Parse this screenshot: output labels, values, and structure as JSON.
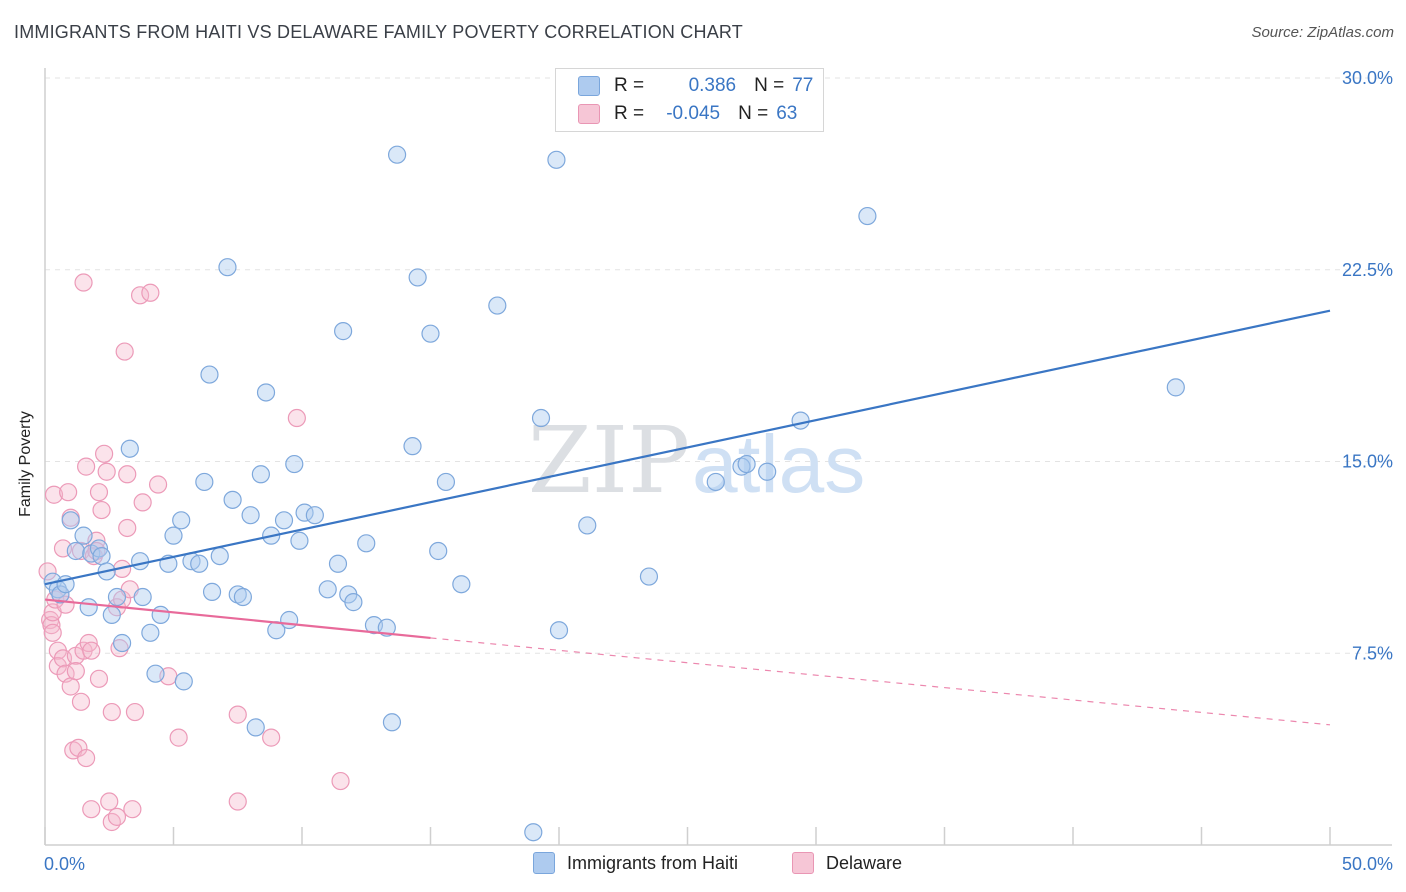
{
  "title": "IMMIGRANTS FROM HAITI VS DELAWARE FAMILY POVERTY CORRELATION CHART",
  "source": "Source: ZipAtlas.com",
  "watermark": "ZIPatlas",
  "legend": {
    "r_label": "R =",
    "n_label": "N =",
    "blue": {
      "r": "0.386",
      "n": "77"
    },
    "pink": {
      "r": "-0.045",
      "n": "63"
    }
  },
  "colors": {
    "blue": "#3a76c4",
    "blue_fill": "#aecbef",
    "pink": "#e86a9a",
    "pink_fill": "#f6b8cc"
  },
  "chart_data": {
    "type": "scatter",
    "xlabel": "",
    "ylabel": "Family Poverty",
    "xlim": [
      0,
      50
    ],
    "ylim": [
      0,
      30
    ],
    "x_tick_labels": [
      "0.0%",
      "50.0%"
    ],
    "y_tick_values": [
      7.5,
      15.0,
      22.5,
      30.0
    ],
    "y_tick_labels": [
      "7.5%",
      "15.0%",
      "22.5%",
      "30.0%"
    ],
    "series": [
      {
        "name": "Immigrants from Haiti",
        "color": "blue",
        "trend": {
          "x0": 0,
          "y0": 10.2,
          "x1": 50,
          "y1": 20.9,
          "dashed_to": null
        },
        "points": [
          [
            0.3,
            10.3
          ],
          [
            0.5,
            10.0
          ],
          [
            0.6,
            9.8
          ],
          [
            0.8,
            10.2
          ],
          [
            1.0,
            12.7
          ],
          [
            1.2,
            11.5
          ],
          [
            1.5,
            12.1
          ],
          [
            1.7,
            9.3
          ],
          [
            1.8,
            11.4
          ],
          [
            2.1,
            11.6
          ],
          [
            2.2,
            11.3
          ],
          [
            2.4,
            10.7
          ],
          [
            2.6,
            9.0
          ],
          [
            2.8,
            9.7
          ],
          [
            3.0,
            7.9
          ],
          [
            3.3,
            15.5
          ],
          [
            3.7,
            11.1
          ],
          [
            3.8,
            9.7
          ],
          [
            4.1,
            8.3
          ],
          [
            4.3,
            6.7
          ],
          [
            4.5,
            9.0
          ],
          [
            4.8,
            11.0
          ],
          [
            5.0,
            12.1
          ],
          [
            5.3,
            12.7
          ],
          [
            5.4,
            6.4
          ],
          [
            5.7,
            11.1
          ],
          [
            6.0,
            11.0
          ],
          [
            6.2,
            14.2
          ],
          [
            6.4,
            18.4
          ],
          [
            6.5,
            9.9
          ],
          [
            6.8,
            11.3
          ],
          [
            7.1,
            22.6
          ],
          [
            7.3,
            13.5
          ],
          [
            7.5,
            9.8
          ],
          [
            7.7,
            9.7
          ],
          [
            8.0,
            12.9
          ],
          [
            8.2,
            4.6
          ],
          [
            8.4,
            14.5
          ],
          [
            8.6,
            17.7
          ],
          [
            8.8,
            12.1
          ],
          [
            9.0,
            8.4
          ],
          [
            9.3,
            12.7
          ],
          [
            9.5,
            8.8
          ],
          [
            9.7,
            14.9
          ],
          [
            9.9,
            11.9
          ],
          [
            10.1,
            13.0
          ],
          [
            10.5,
            12.9
          ],
          [
            11.0,
            10.0
          ],
          [
            11.4,
            11.0
          ],
          [
            11.6,
            20.1
          ],
          [
            11.8,
            9.8
          ],
          [
            12.0,
            9.5
          ],
          [
            12.5,
            11.8
          ],
          [
            12.8,
            8.6
          ],
          [
            13.3,
            8.5
          ],
          [
            13.5,
            4.8
          ],
          [
            13.7,
            27.0
          ],
          [
            14.3,
            15.6
          ],
          [
            14.5,
            22.2
          ],
          [
            15.0,
            20.0
          ],
          [
            15.3,
            11.5
          ],
          [
            15.6,
            14.2
          ],
          [
            16.2,
            10.2
          ],
          [
            17.6,
            21.1
          ],
          [
            19.0,
            0.5
          ],
          [
            19.3,
            16.7
          ],
          [
            19.9,
            26.8
          ],
          [
            20.0,
            8.4
          ],
          [
            21.1,
            12.5
          ],
          [
            23.5,
            10.5
          ],
          [
            26.1,
            14.2
          ],
          [
            27.1,
            14.8
          ],
          [
            27.3,
            14.9
          ],
          [
            28.1,
            14.6
          ],
          [
            29.4,
            16.6
          ],
          [
            32.0,
            24.6
          ],
          [
            44.0,
            17.9
          ]
        ]
      },
      {
        "name": "Delaware",
        "color": "pink",
        "trend": {
          "x0": 0,
          "y0": 9.6,
          "x1": 15,
          "y1": 8.1,
          "dashed_to": {
            "x": 50,
            "y": 4.7
          }
        },
        "points": [
          [
            0.1,
            10.7
          ],
          [
            0.2,
            8.8
          ],
          [
            0.25,
            8.6
          ],
          [
            0.3,
            8.3
          ],
          [
            0.3,
            9.1
          ],
          [
            0.35,
            13.7
          ],
          [
            0.4,
            9.6
          ],
          [
            0.5,
            7.6
          ],
          [
            0.5,
            7.0
          ],
          [
            0.6,
            9.8
          ],
          [
            0.7,
            11.6
          ],
          [
            0.7,
            7.3
          ],
          [
            0.8,
            9.4
          ],
          [
            0.8,
            6.7
          ],
          [
            0.9,
            13.8
          ],
          [
            1.0,
            6.2
          ],
          [
            1.0,
            12.8
          ],
          [
            1.1,
            3.7
          ],
          [
            1.2,
            7.4
          ],
          [
            1.2,
            6.8
          ],
          [
            1.3,
            3.8
          ],
          [
            1.4,
            11.5
          ],
          [
            1.4,
            5.6
          ],
          [
            1.5,
            7.6
          ],
          [
            1.5,
            22.0
          ],
          [
            1.6,
            3.4
          ],
          [
            1.6,
            14.8
          ],
          [
            1.7,
            7.9
          ],
          [
            1.8,
            1.4
          ],
          [
            1.8,
            7.6
          ],
          [
            1.9,
            11.3
          ],
          [
            2.0,
            11.9
          ],
          [
            2.0,
            11.5
          ],
          [
            2.1,
            6.5
          ],
          [
            2.1,
            13.8
          ],
          [
            2.2,
            13.1
          ],
          [
            2.3,
            15.3
          ],
          [
            2.4,
            14.6
          ],
          [
            2.5,
            1.7
          ],
          [
            2.6,
            5.2
          ],
          [
            2.6,
            0.9
          ],
          [
            2.8,
            9.3
          ],
          [
            2.8,
            1.1
          ],
          [
            2.9,
            7.7
          ],
          [
            3.0,
            9.6
          ],
          [
            3.0,
            10.8
          ],
          [
            3.1,
            19.3
          ],
          [
            3.2,
            14.5
          ],
          [
            3.2,
            12.4
          ],
          [
            3.3,
            10.0
          ],
          [
            3.4,
            1.4
          ],
          [
            3.5,
            5.2
          ],
          [
            3.7,
            21.5
          ],
          [
            3.8,
            13.4
          ],
          [
            4.1,
            21.6
          ],
          [
            4.4,
            14.1
          ],
          [
            4.8,
            6.6
          ],
          [
            5.2,
            4.2
          ],
          [
            7.5,
            5.1
          ],
          [
            7.5,
            1.7
          ],
          [
            8.8,
            4.2
          ],
          [
            9.8,
            16.7
          ],
          [
            11.5,
            2.5
          ]
        ]
      }
    ]
  },
  "bottom_legend": [
    "Immigrants from Haiti",
    "Delaware"
  ]
}
